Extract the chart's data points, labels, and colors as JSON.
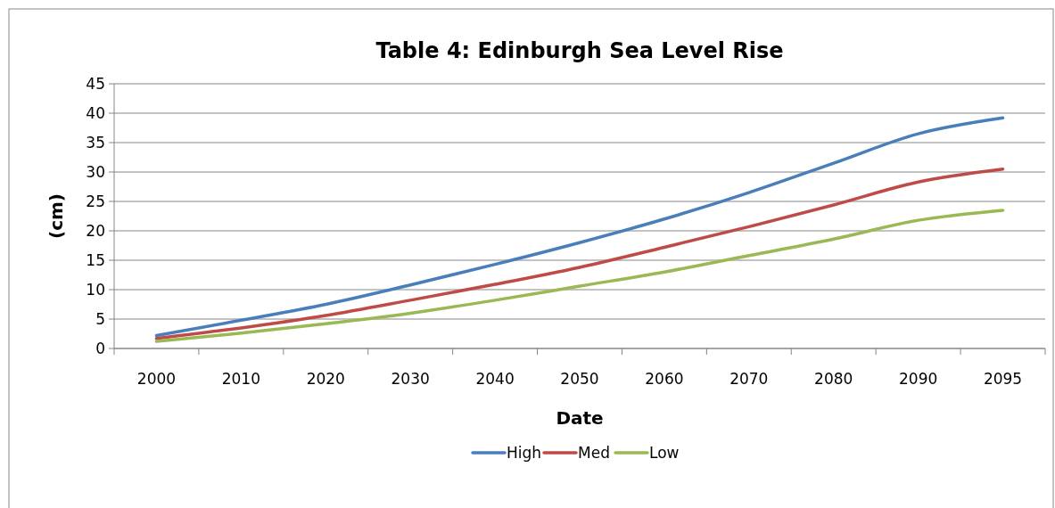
{
  "chart_data": {
    "type": "line",
    "title": "Table 4: Edinburgh Sea Level Rise",
    "xlabel": "Date",
    "ylabel": "(cm)",
    "categories": [
      "2000",
      "2010",
      "2020",
      "2030",
      "2040",
      "2050",
      "2060",
      "2070",
      "2080",
      "2090",
      "2095"
    ],
    "series": [
      {
        "name": "High",
        "color": "#4a7ebb",
        "values": [
          2.2,
          4.8,
          7.5,
          10.8,
          14.3,
          18,
          22,
          26.5,
          31.5,
          36.5,
          39.2
        ]
      },
      {
        "name": "Med",
        "color": "#be4b48",
        "values": [
          1.7,
          3.5,
          5.6,
          8.2,
          10.9,
          13.8,
          17.2,
          20.7,
          24.4,
          28.3,
          30.5
        ]
      },
      {
        "name": "Low",
        "color": "#98b954",
        "values": [
          1.2,
          2.6,
          4.2,
          6.0,
          8.2,
          10.6,
          13.0,
          15.8,
          18.6,
          21.8,
          23.5
        ]
      }
    ],
    "ylim": [
      0,
      45
    ],
    "yticks": [
      0,
      5,
      10,
      15,
      20,
      25,
      30,
      35,
      40,
      45
    ],
    "grid": "y",
    "legend": "bottom",
    "marker": "none",
    "line_style": "solid"
  }
}
